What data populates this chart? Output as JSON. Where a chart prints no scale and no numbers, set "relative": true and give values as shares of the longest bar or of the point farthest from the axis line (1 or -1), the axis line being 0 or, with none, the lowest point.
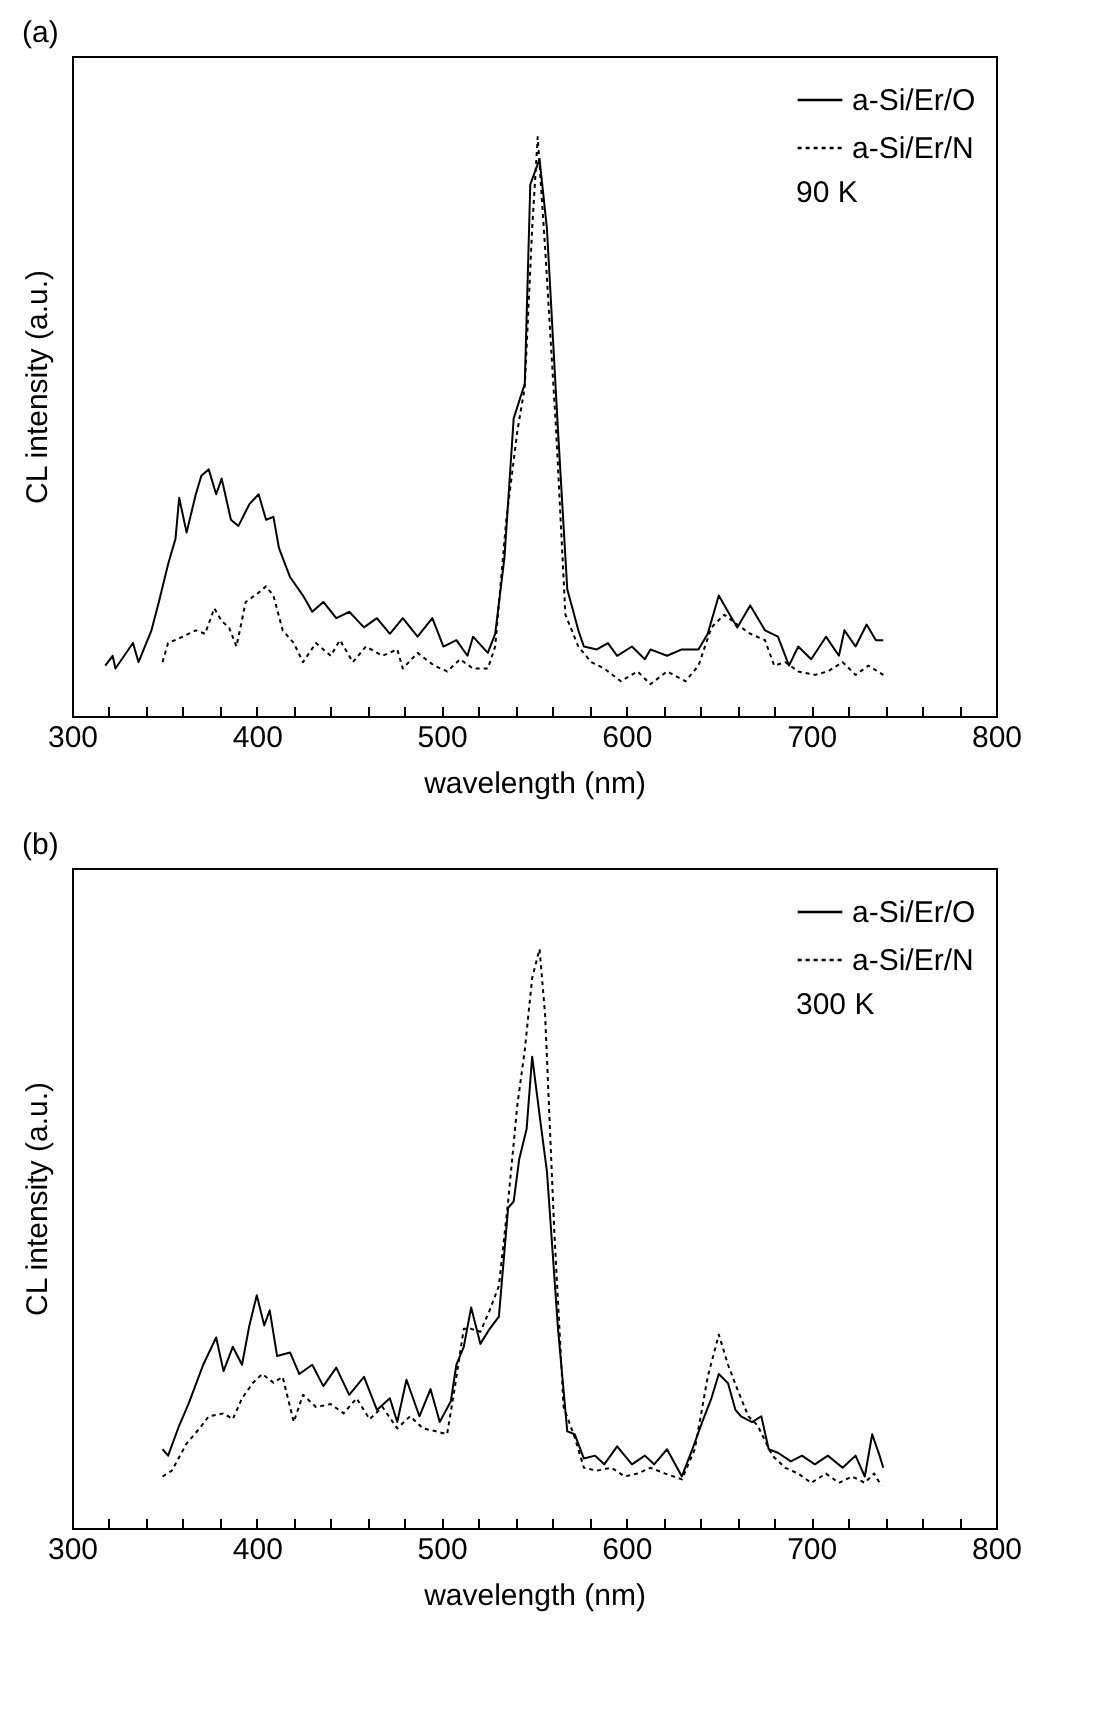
{
  "chart_data": [
    {
      "type": "line",
      "title": "(a)",
      "xlabel": "wavelength (nm)",
      "ylabel": "CL intensity (a.u.)",
      "relative": true,
      "legend": "top right",
      "annotations": [
        "90 K"
      ],
      "xlim": [
        300,
        800
      ],
      "xticks": [
        300,
        {
          "value": 320,
          "label": null
        },
        {
          "value": 340,
          "label": null
        },
        {
          "value": 360,
          "label": null
        },
        {
          "value": 380,
          "label": null
        },
        400,
        {
          "value": 420,
          "label": null
        },
        {
          "value": 440,
          "label": null
        },
        {
          "value": 460,
          "label": null
        },
        {
          "value": 480,
          "label": null
        },
        500,
        {
          "value": 520,
          "label": null
        },
        {
          "value": 540,
          "label": null
        },
        {
          "value": 560,
          "label": null
        },
        {
          "value": 580,
          "label": null
        },
        600,
        {
          "value": 620,
          "label": null
        },
        {
          "value": 640,
          "label": null
        },
        {
          "value": 660,
          "label": null
        },
        {
          "value": 680,
          "label": null
        },
        700,
        {
          "value": 720,
          "label": null
        },
        {
          "value": 740,
          "label": null
        },
        {
          "value": 760,
          "label": null
        },
        {
          "value": 780,
          "label": null
        },
        800
      ],
      "series": [
        {
          "name": "a-Si/Er/O",
          "color": "#000000",
          "line_style": "solid",
          "x": [
            318,
            322,
            323.5,
            333,
            336,
            343,
            347,
            352,
            356,
            358,
            362,
            367,
            370,
            374,
            378,
            381,
            386,
            390,
            396,
            401,
            405,
            409,
            412,
            418,
            425,
            430,
            436,
            443,
            450,
            458,
            465,
            472,
            479,
            487,
            495,
            501,
            508,
            514,
            517,
            525,
            529,
            534,
            539,
            545,
            548,
            553,
            557,
            563,
            568,
            574,
            577,
            584,
            590,
            595,
            603,
            610,
            613,
            622,
            630,
            639,
            644,
            650,
            655,
            660,
            667,
            675,
            682,
            688,
            693,
            700,
            708,
            715,
            718,
            724,
            730,
            735,
            739
          ],
          "values": [
            0.087,
            0.104,
            0.082,
            0.126,
            0.093,
            0.148,
            0.197,
            0.262,
            0.306,
            0.377,
            0.317,
            0.383,
            0.415,
            0.426,
            0.383,
            0.41,
            0.339,
            0.328,
            0.366,
            0.383,
            0.339,
            0.344,
            0.29,
            0.24,
            0.208,
            0.18,
            0.197,
            0.169,
            0.18,
            0.153,
            0.169,
            0.142,
            0.169,
            0.137,
            0.169,
            0.12,
            0.131,
            0.104,
            0.137,
            0.109,
            0.142,
            0.273,
            0.514,
            0.574,
            0.918,
            0.962,
            0.842,
            0.492,
            0.219,
            0.148,
            0.12,
            0.115,
            0.126,
            0.104,
            0.12,
            0.098,
            0.115,
            0.104,
            0.115,
            0.115,
            0.142,
            0.208,
            0.18,
            0.153,
            0.191,
            0.148,
            0.137,
            0.087,
            0.12,
            0.098,
            0.137,
            0.104,
            0.148,
            0.12,
            0.158,
            0.131,
            0.131
          ]
        },
        {
          "name": "a-Si/Er/N",
          "color": "#000000",
          "line_style": "dotted",
          "x": [
            349,
            352,
            360,
            367,
            372,
            377,
            381,
            385,
            389,
            394,
            401,
            405,
            409,
            414,
            420,
            425,
            432,
            440,
            445,
            452,
            459,
            468,
            476,
            479,
            487,
            496,
            503,
            510,
            517,
            525,
            529,
            535,
            541,
            545,
            549,
            552,
            556,
            562,
            567,
            574,
            581,
            588,
            597,
            606,
            613,
            622,
            632,
            639,
            646,
            653,
            660,
            667,
            675,
            680,
            686,
            693,
            702,
            709,
            717,
            724,
            731,
            739
          ],
          "values": [
            0.093,
            0.126,
            0.137,
            0.148,
            0.142,
            0.186,
            0.164,
            0.153,
            0.12,
            0.197,
            0.213,
            0.224,
            0.208,
            0.148,
            0.126,
            0.093,
            0.126,
            0.104,
            0.131,
            0.093,
            0.12,
            0.104,
            0.115,
            0.082,
            0.109,
            0.087,
            0.077,
            0.098,
            0.082,
            0.082,
            0.12,
            0.339,
            0.492,
            0.568,
            0.842,
            1.0,
            0.809,
            0.492,
            0.175,
            0.12,
            0.093,
            0.082,
            0.06,
            0.077,
            0.055,
            0.077,
            0.06,
            0.087,
            0.153,
            0.175,
            0.158,
            0.142,
            0.131,
            0.087,
            0.093,
            0.077,
            0.071,
            0.077,
            0.093,
            0.071,
            0.087,
            0.071
          ]
        }
      ]
    },
    {
      "type": "line",
      "title": "(b)",
      "xlabel": "wavelength (nm)",
      "ylabel": "CL intensity (a.u.)",
      "relative": true,
      "legend": "top right",
      "annotations": [
        "300 K"
      ],
      "xlim": [
        300,
        800
      ],
      "xticks": [
        300,
        {
          "value": 320,
          "label": null
        },
        {
          "value": 340,
          "label": null
        },
        {
          "value": 360,
          "label": null
        },
        {
          "value": 380,
          "label": null
        },
        400,
        {
          "value": 420,
          "label": null
        },
        {
          "value": 440,
          "label": null
        },
        {
          "value": 460,
          "label": null
        },
        {
          "value": 480,
          "label": null
        },
        500,
        {
          "value": 520,
          "label": null
        },
        {
          "value": 540,
          "label": null
        },
        {
          "value": 560,
          "label": null
        },
        {
          "value": 580,
          "label": null
        },
        600,
        {
          "value": 620,
          "label": null
        },
        {
          "value": 640,
          "label": null
        },
        {
          "value": 660,
          "label": null
        },
        {
          "value": 680,
          "label": null
        },
        700,
        {
          "value": 720,
          "label": null
        },
        {
          "value": 740,
          "label": null
        },
        {
          "value": 760,
          "label": null
        },
        {
          "value": 780,
          "label": null
        },
        800
      ],
      "series": [
        {
          "name": "a-Si/Er/O",
          "color": "#000000",
          "line_style": "solid",
          "x": [
            349,
            352,
            358,
            363,
            371,
            378,
            382,
            387,
            392,
            396,
            400,
            404,
            407,
            411,
            418,
            423,
            430,
            436,
            443,
            450,
            458,
            465,
            472,
            476,
            481,
            488,
            494,
            499,
            505,
            508,
            512,
            516,
            521,
            526,
            531,
            536,
            539,
            542,
            546,
            549,
            554,
            557,
            563,
            568,
            572,
            577,
            583,
            588,
            595,
            603,
            610,
            615,
            622,
            630,
            635,
            641,
            646,
            650,
            655,
            659,
            662,
            668,
            673,
            677,
            682,
            689,
            695,
            702,
            709,
            717,
            724,
            729,
            733,
            737,
            739
          ],
          "values": [
            0.136,
            0.125,
            0.177,
            0.214,
            0.282,
            0.329,
            0.271,
            0.313,
            0.282,
            0.35,
            0.402,
            0.35,
            0.376,
            0.297,
            0.303,
            0.266,
            0.282,
            0.245,
            0.277,
            0.23,
            0.261,
            0.204,
            0.224,
            0.183,
            0.256,
            0.193,
            0.24,
            0.183,
            0.219,
            0.282,
            0.313,
            0.381,
            0.318,
            0.344,
            0.365,
            0.553,
            0.564,
            0.637,
            0.689,
            0.814,
            0.689,
            0.616,
            0.344,
            0.167,
            0.162,
            0.12,
            0.125,
            0.11,
            0.141,
            0.11,
            0.125,
            0.11,
            0.136,
            0.089,
            0.13,
            0.183,
            0.224,
            0.266,
            0.25,
            0.204,
            0.193,
            0.183,
            0.193,
            0.136,
            0.13,
            0.115,
            0.125,
            0.11,
            0.125,
            0.104,
            0.125,
            0.089,
            0.162,
            0.125,
            0.104
          ]
        },
        {
          "name": "a-Si/Er/N",
          "color": "#000000",
          "line_style": "dotted",
          "x": [
            349,
            354,
            362,
            369,
            374,
            382,
            387,
            392,
            398,
            403,
            409,
            414,
            420,
            425,
            432,
            440,
            447,
            454,
            461,
            468,
            476,
            483,
            490,
            497,
            503,
            507,
            512,
            516,
            521,
            526,
            531,
            536,
            541,
            545,
            549,
            553,
            556,
            561,
            566,
            572,
            577,
            584,
            592,
            599,
            606,
            613,
            621,
            630,
            637,
            644,
            650,
            655,
            660,
            666,
            671,
            679,
            686,
            693,
            700,
            708,
            715,
            722,
            729,
            734,
            738
          ],
          "values": [
            0.089,
            0.099,
            0.146,
            0.172,
            0.193,
            0.198,
            0.188,
            0.224,
            0.251,
            0.266,
            0.251,
            0.261,
            0.183,
            0.23,
            0.209,
            0.214,
            0.198,
            0.224,
            0.188,
            0.209,
            0.172,
            0.193,
            0.172,
            0.167,
            0.162,
            0.24,
            0.344,
            0.344,
            0.339,
            0.376,
            0.418,
            0.564,
            0.731,
            0.825,
            0.95,
            1.0,
            0.887,
            0.511,
            0.209,
            0.157,
            0.104,
            0.099,
            0.104,
            0.089,
            0.094,
            0.104,
            0.094,
            0.084,
            0.136,
            0.261,
            0.334,
            0.282,
            0.24,
            0.193,
            0.177,
            0.125,
            0.104,
            0.094,
            0.078,
            0.094,
            0.078,
            0.089,
            0.078,
            0.094,
            0.073
          ]
        }
      ]
    }
  ]
}
